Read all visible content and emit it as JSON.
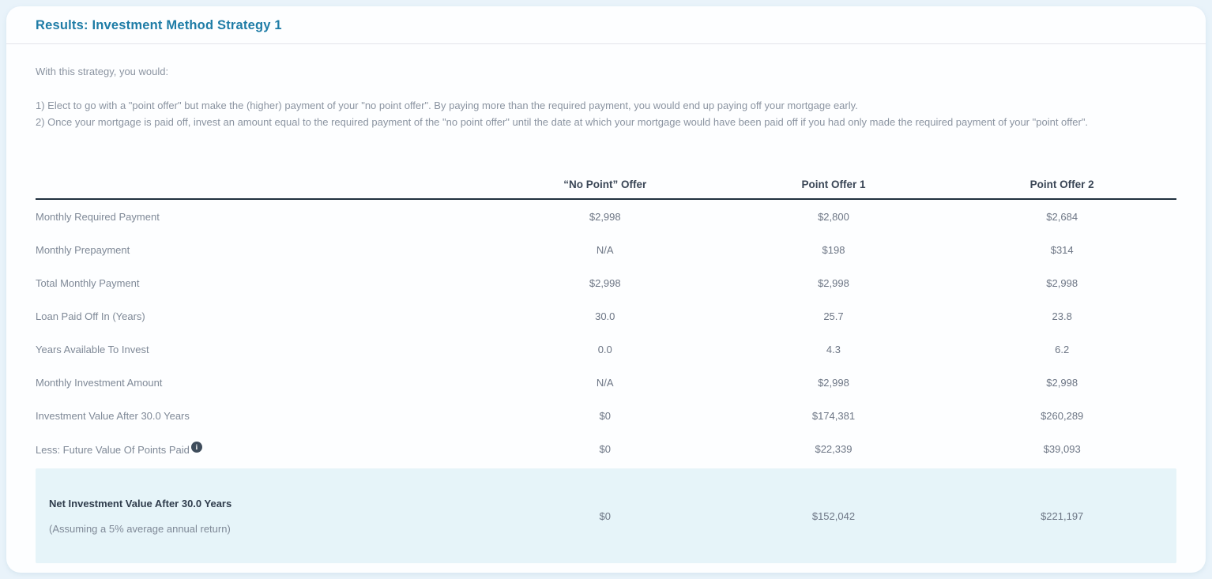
{
  "page": {
    "title": "Results: Investment Method Strategy 1"
  },
  "intro": {
    "lead": "With this strategy, you would:",
    "steps": [
      "1) Elect to go with a \"point offer\" but make the (higher) payment of your \"no point offer\". By paying more than the required payment, you would end up paying off your mortgage early.",
      "2) Once your mortgage is paid off, invest an amount equal to the required payment of the \"no point offer\" until the date at which your mortgage would have been paid off if you had only made the required payment of your \"point offer\"."
    ]
  },
  "table": {
    "columns": [
      "“No Point” Offer",
      "Point Offer 1",
      "Point Offer 2"
    ],
    "rows": [
      {
        "label": "Monthly Required Payment",
        "has_info_icon": false,
        "values": [
          "$2,998",
          "$2,800",
          "$2,684"
        ]
      },
      {
        "label": "Monthly Prepayment",
        "has_info_icon": false,
        "values": [
          "N/A",
          "$198",
          "$314"
        ]
      },
      {
        "label": "Total Monthly Payment",
        "has_info_icon": false,
        "values": [
          "$2,998",
          "$2,998",
          "$2,998"
        ]
      },
      {
        "label": "Loan Paid Off In (Years)",
        "has_info_icon": false,
        "values": [
          "30.0",
          "25.7",
          "23.8"
        ]
      },
      {
        "label": "Years Available To Invest",
        "has_info_icon": false,
        "values": [
          "0.0",
          "4.3",
          "6.2"
        ]
      },
      {
        "label": "Monthly Investment Amount",
        "has_info_icon": false,
        "values": [
          "N/A",
          "$2,998",
          "$2,998"
        ]
      },
      {
        "label": "Investment Value After 30.0 Years",
        "has_info_icon": false,
        "values": [
          "$0",
          "$174,381",
          "$260,289"
        ]
      },
      {
        "label": "Less: Future Value Of Points Paid",
        "has_info_icon": true,
        "values": [
          "$0",
          "$22,339",
          "$39,093"
        ]
      }
    ],
    "summary_row": {
      "label": "Net Investment Value After 30.0 Years",
      "sublabel": "(Assuming a 5% average annual return)",
      "values": [
        "$0",
        "$152,042",
        "$221,197"
      ]
    },
    "info_icon_glyph": "i"
  },
  "colors": {
    "title_accent": "#1e7ca6",
    "header_rule": "#20303f",
    "summary_highlight": "#e6f4f9",
    "page_background": "#e9f3fa"
  }
}
